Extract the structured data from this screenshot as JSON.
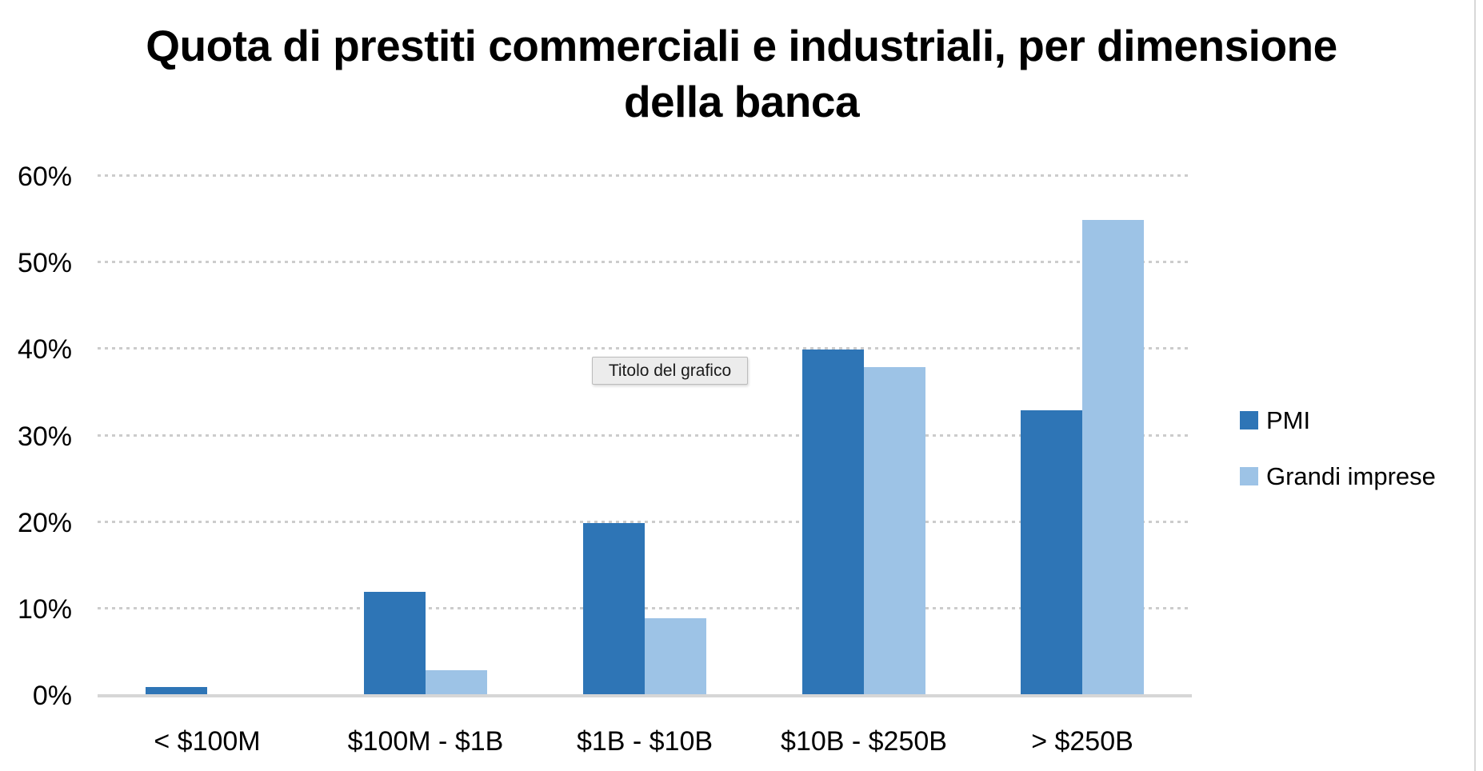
{
  "title": {
    "line1": "Quota di prestiti commerciali e industriali, per dimensione",
    "line2": "della banca"
  },
  "tooltip": {
    "text": "Titolo del grafico"
  },
  "legend": {
    "items": [
      {
        "label": "PMI",
        "color": "#2E75B6"
      },
      {
        "label": "Grandi imprese",
        "color": "#9DC3E6"
      }
    ]
  },
  "chart_data": {
    "type": "bar",
    "title": "Quota di prestiti commerciali e industriali, per dimensione della banca",
    "categories": [
      "< $100M",
      "$100M - $1B",
      "$1B - $10B",
      "$10B - $250B",
      "> $250B"
    ],
    "series": [
      {
        "name": "PMI",
        "color": "#2E75B6",
        "values": [
          1,
          12,
          20,
          40,
          33
        ]
      },
      {
        "name": "Grandi imprese",
        "color": "#9DC3E6",
        "values": [
          0,
          3,
          9,
          38,
          55
        ]
      }
    ],
    "xlabel": "",
    "ylabel": "",
    "ylim": [
      0,
      60
    ],
    "y_tick_step": 10,
    "y_ticks": [
      "0%",
      "10%",
      "20%",
      "30%",
      "40%",
      "50%",
      "60%"
    ],
    "grid": "horizontal-dotted",
    "legend_position": "right"
  }
}
